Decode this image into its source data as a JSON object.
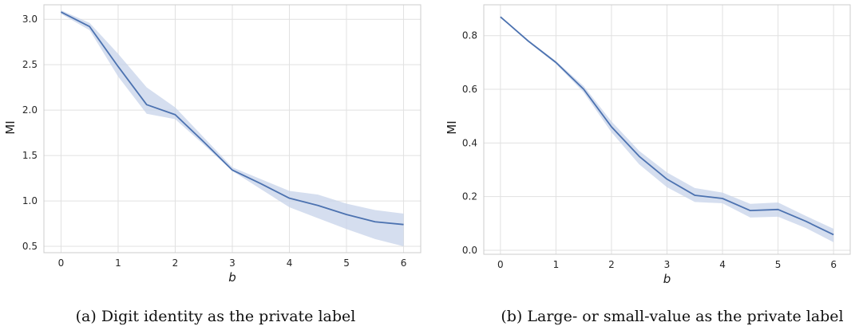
{
  "colors": {
    "line": "#4c72b0",
    "band": "#c7d3ea",
    "grid": "#e1e1e1",
    "frame": "#cccccc",
    "background": "#ffffff"
  },
  "chart_data": [
    {
      "type": "line",
      "caption": "(a) Digit identity as the private label",
      "xlabel": "b",
      "ylabel": "MI",
      "xlim": [
        -0.3,
        6.3
      ],
      "ylim": [
        0.43,
        3.16
      ],
      "xticks": [
        0,
        1,
        2,
        3,
        4,
        5,
        6
      ],
      "yticks": [
        0.5,
        1.0,
        1.5,
        2.0,
        2.5,
        3.0
      ],
      "ytick_labels": [
        "0.5",
        "1.0",
        "1.5",
        "2.0",
        "2.5",
        "3.0"
      ],
      "grid": true,
      "series": [
        {
          "x": [
            0,
            0.5,
            1,
            1.5,
            2,
            2.5,
            3,
            3.5,
            4,
            4.5,
            5,
            5.5,
            6
          ],
          "y": [
            3.08,
            2.92,
            2.48,
            2.06,
            1.95,
            1.65,
            1.34,
            1.19,
            1.03,
            0.95,
            0.85,
            0.77,
            0.74
          ],
          "lower": [
            3.06,
            2.88,
            2.37,
            1.96,
            1.9,
            1.62,
            1.33,
            1.13,
            0.93,
            0.81,
            0.69,
            0.58,
            0.5
          ],
          "upper": [
            3.1,
            2.96,
            2.62,
            2.25,
            2.03,
            1.7,
            1.37,
            1.24,
            1.11,
            1.07,
            0.97,
            0.9,
            0.86
          ]
        }
      ]
    },
    {
      "type": "line",
      "caption": "(b) Large- or small-value as the private label",
      "xlabel": "b",
      "ylabel": "MI",
      "xlim": [
        -0.3,
        6.3
      ],
      "ylim": [
        -0.015,
        0.915
      ],
      "xticks": [
        0,
        1,
        2,
        3,
        4,
        5,
        6
      ],
      "yticks": [
        0.0,
        0.2,
        0.4,
        0.6,
        0.8
      ],
      "ytick_labels": [
        "0.0",
        "0.2",
        "0.4",
        "0.6",
        "0.8"
      ],
      "grid": true,
      "series": [
        {
          "x": [
            0,
            0.5,
            1,
            1.5,
            2,
            2.5,
            3,
            3.5,
            4,
            4.5,
            5,
            5.5,
            6
          ],
          "y": [
            0.87,
            0.78,
            0.7,
            0.6,
            0.46,
            0.35,
            0.265,
            0.205,
            0.193,
            0.148,
            0.152,
            0.108,
            0.058
          ],
          "lower": [
            0.868,
            0.776,
            0.695,
            0.588,
            0.44,
            0.32,
            0.235,
            0.18,
            0.175,
            0.122,
            0.125,
            0.083,
            0.03
          ],
          "upper": [
            0.872,
            0.784,
            0.705,
            0.612,
            0.48,
            0.37,
            0.29,
            0.232,
            0.215,
            0.173,
            0.178,
            0.128,
            0.08
          ]
        }
      ]
    }
  ]
}
